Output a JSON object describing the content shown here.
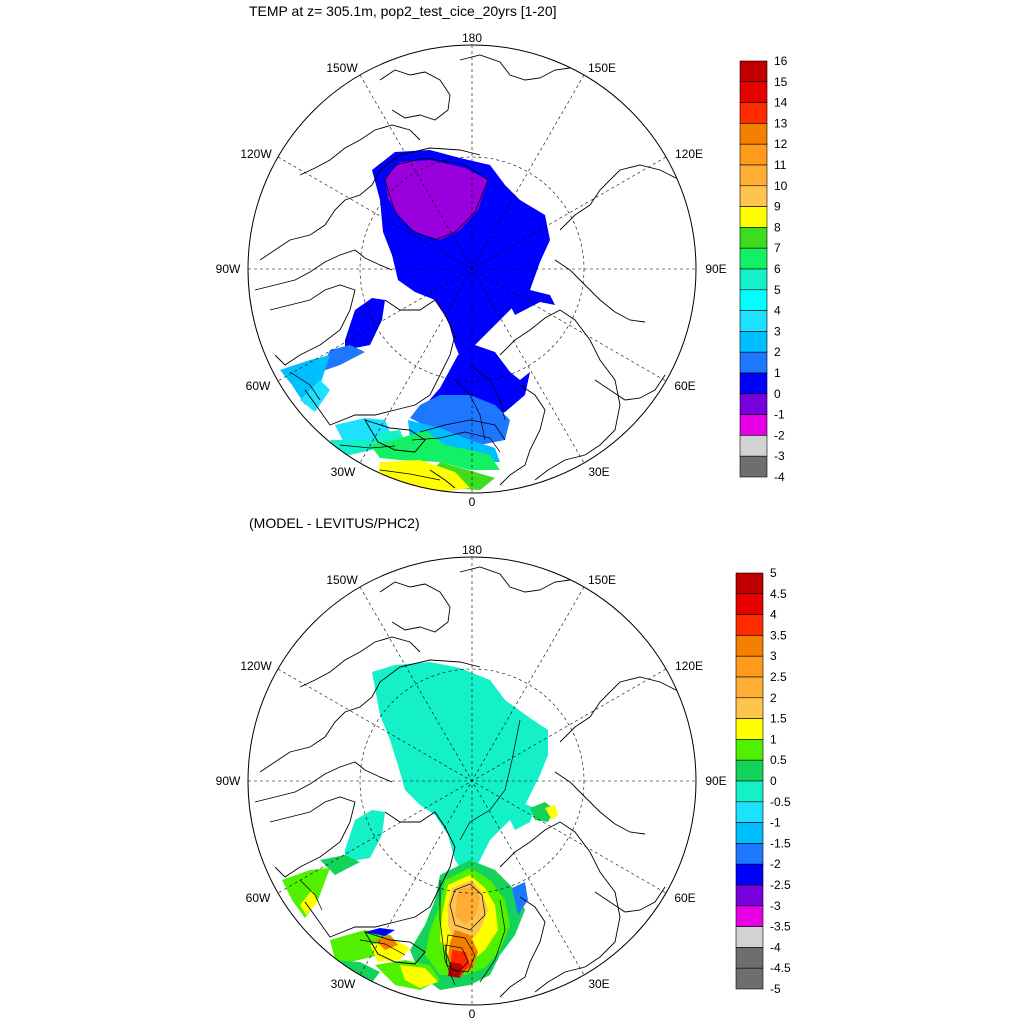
{
  "panels": [
    {
      "title": "TEMP at z= 305.1m, pop2_test_cice_20yrs [1-20]",
      "lon_labels": [
        "180",
        "150E",
        "120E",
        "90E",
        "60E",
        "30E",
        "0",
        "30W",
        "60W",
        "90W",
        "120W",
        "150W"
      ],
      "colorbar": {
        "labels": [
          "16",
          "15",
          "14",
          "13",
          "12",
          "11",
          "10",
          "9",
          "8",
          "7",
          "6",
          "5",
          "4",
          "3",
          "2",
          "1",
          "0",
          "-1",
          "-2",
          "-3",
          "-4"
        ],
        "colors": [
          "#c00000",
          "#e60000",
          "#ff2a00",
          "#f57f00",
          "#ff9a1a",
          "#ffae33",
          "#ffc44d",
          "#ffff00",
          "#3ddc1f",
          "#14f064",
          "#14f0c8",
          "#00ffff",
          "#1ee0ff",
          "#00bfff",
          "#1e78ff",
          "#0000ff",
          "#7800dc",
          "#e600e6",
          "#d2d2d2",
          "#6e6e6e"
        ]
      }
    },
    {
      "title": "(MODEL - LEVITUS/PHC2)",
      "lon_labels": [
        "180",
        "150E",
        "120E",
        "90E",
        "60E",
        "30E",
        "0",
        "30W",
        "60W",
        "90W",
        "120W",
        "150W"
      ],
      "colorbar": {
        "labels": [
          "5",
          "4.5",
          "4",
          "3.5",
          "3",
          "2.5",
          "2",
          "1.5",
          "1",
          "0.5",
          "0",
          "-0.5",
          "-1",
          "-1.5",
          "-2",
          "-2.5",
          "-3",
          "-3.5",
          "-4",
          "-4.5",
          "-5"
        ],
        "colors": [
          "#c00000",
          "#e60000",
          "#ff2a00",
          "#f57f00",
          "#ff9a1a",
          "#ffae33",
          "#ffc44d",
          "#ffff00",
          "#50f000",
          "#14d25a",
          "#14f0c8",
          "#1ee0ff",
          "#00bfff",
          "#1e78ff",
          "#0000ff",
          "#7800dc",
          "#e600e6",
          "#d2d2d2",
          "#6e6e6e",
          "#6e6e6e"
        ]
      }
    }
  ]
}
